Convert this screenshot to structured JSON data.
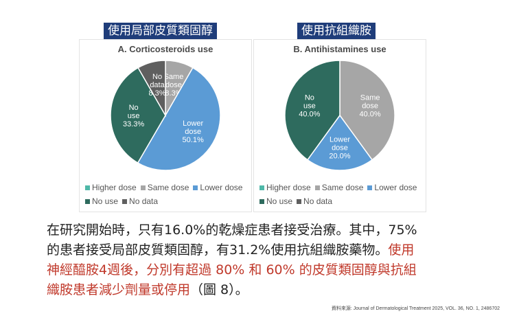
{
  "titles": {
    "left_zh": "使用局部皮質類固醇",
    "right_zh": "使用抗組織胺"
  },
  "chart_data": [
    {
      "type": "pie",
      "title": "A. Corticosteroids use",
      "slices": [
        {
          "label": "Same dose",
          "value": 8.3,
          "text": "8.3%",
          "color": "#a6a6a6"
        },
        {
          "label": "Lower dose",
          "value": 50.1,
          "text": "50.1%",
          "color": "#5b9bd5"
        },
        {
          "label": "No use",
          "value": 33.3,
          "text": "33.3%",
          "color": "#2e6b5e"
        },
        {
          "label": "No data",
          "value": 8.3,
          "text": "8.3%",
          "color": "#5f5f5f"
        }
      ],
      "legend": [
        "Higher dose",
        "Same dose",
        "Lower dose",
        "No use",
        "No data"
      ]
    },
    {
      "type": "pie",
      "title": "B. Antihistamines use",
      "slices": [
        {
          "label": "Same dose",
          "value": 40.0,
          "text": "40.0%",
          "color": "#a6a6a6"
        },
        {
          "label": "Lower dose",
          "value": 20.0,
          "text": "20.0%",
          "color": "#5b9bd5"
        },
        {
          "label": "No use",
          "value": 40.0,
          "text": "40.0%",
          "color": "#2e6b5e"
        }
      ],
      "legend": [
        "Higher dose",
        "Same dose",
        "Lower dose",
        "No use",
        "No data"
      ]
    }
  ],
  "legend_colors": {
    "Higher dose": "#4fb8a8",
    "Same dose": "#a6a6a6",
    "Lower dose": "#5b9bd5",
    "No use": "#2e6b5e",
    "No data": "#5f5f5f"
  },
  "body": {
    "line1": "在研究開始時，只有16.0%的乾燥症患者接受治療。其中，75%",
    "line2_black": "的患者接受局部皮質類固醇，有31.2%使用抗組織胺藥物。",
    "line2_red": "使用",
    "line3_red": "神經醯胺4週後，分別有超過 80% 和 60% 的皮質類固醇與抗組",
    "line4_red": "織胺患者減少劑量或停用",
    "line4_black": "（圖 8）。"
  },
  "source": "資料來源: Journal of Dermatological Treatment 2025, VOL. 36, NO. 1, 2486702"
}
